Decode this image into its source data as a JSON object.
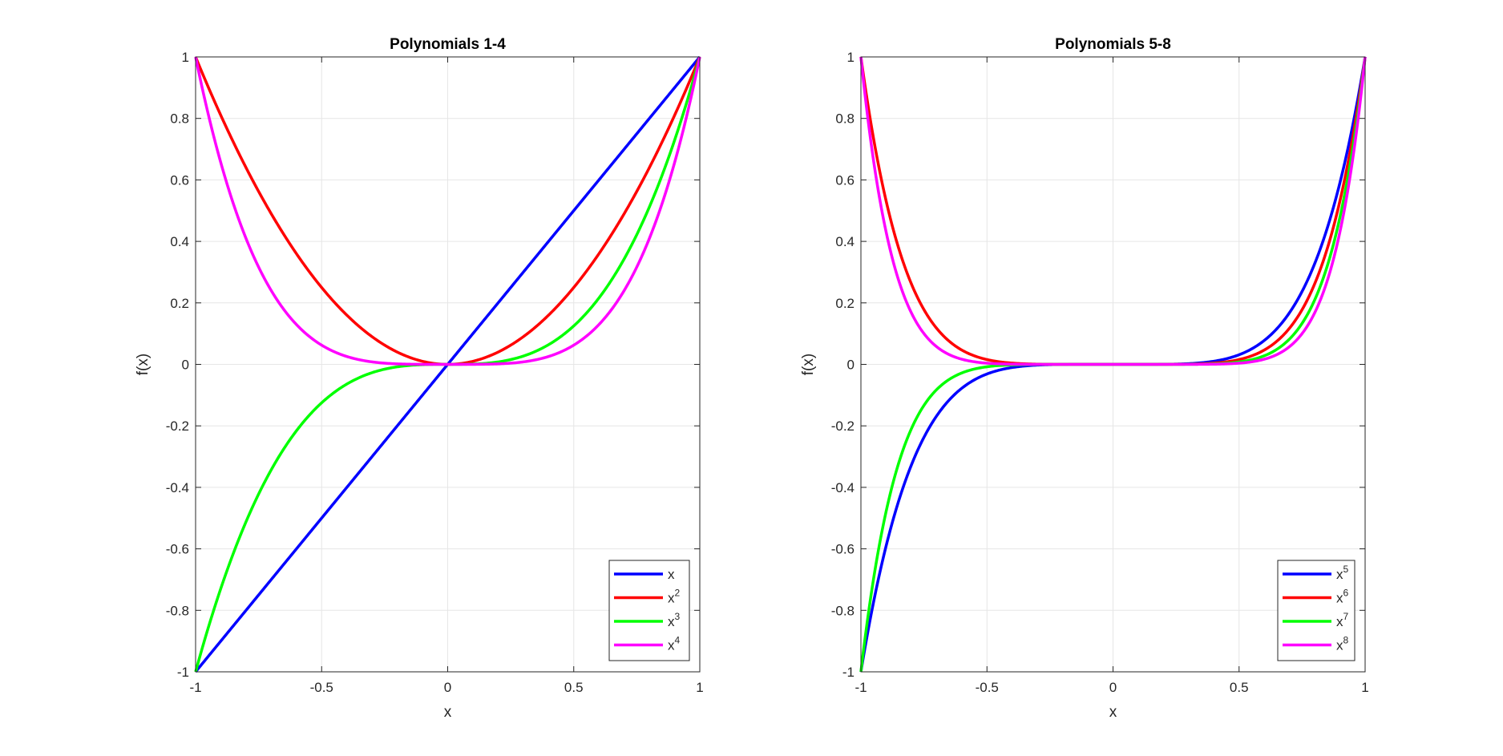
{
  "chart_data": [
    {
      "type": "line",
      "title": "Polynomials 1-4",
      "xlabel": "x",
      "ylabel": "f(x)",
      "xlim": [
        -1,
        1
      ],
      "ylim": [
        -1,
        1
      ],
      "xticks": [
        "-1",
        "-0.5",
        "0",
        "0.5",
        "1"
      ],
      "yticks": [
        "-1",
        "-0.8",
        "-0.6",
        "-0.4",
        "-0.2",
        "0",
        "0.2",
        "0.4",
        "0.6",
        "0.8",
        "1"
      ],
      "grid": true,
      "legend_location": "bottom-right",
      "series": [
        {
          "name": "x",
          "base": "x",
          "sup": "",
          "exponent": 1,
          "color": "#0000ff"
        },
        {
          "name": "x^2",
          "base": "x",
          "sup": "2",
          "exponent": 2,
          "color": "#ff0000"
        },
        {
          "name": "x^3",
          "base": "x",
          "sup": "3",
          "exponent": 3,
          "color": "#00ff00"
        },
        {
          "name": "x^4",
          "base": "x",
          "sup": "4",
          "exponent": 4,
          "color": "#ff00ff"
        }
      ]
    },
    {
      "type": "line",
      "title": "Polynomials 5-8",
      "xlabel": "x",
      "ylabel": "f(x)",
      "xlim": [
        -1,
        1
      ],
      "ylim": [
        -1,
        1
      ],
      "xticks": [
        "-1",
        "-0.5",
        "0",
        "0.5",
        "1"
      ],
      "yticks": [
        "-1",
        "-0.8",
        "-0.6",
        "-0.4",
        "-0.2",
        "0",
        "0.2",
        "0.4",
        "0.6",
        "0.8",
        "1"
      ],
      "grid": true,
      "legend_location": "bottom-right",
      "series": [
        {
          "name": "x^5",
          "base": "x",
          "sup": "5",
          "exponent": 5,
          "color": "#0000ff"
        },
        {
          "name": "x^6",
          "base": "x",
          "sup": "6",
          "exponent": 6,
          "color": "#ff0000"
        },
        {
          "name": "x^7",
          "base": "x",
          "sup": "7",
          "exponent": 7,
          "color": "#00ff00"
        },
        {
          "name": "x^8",
          "base": "x",
          "sup": "8",
          "exponent": 8,
          "color": "#ff00ff"
        }
      ]
    }
  ]
}
